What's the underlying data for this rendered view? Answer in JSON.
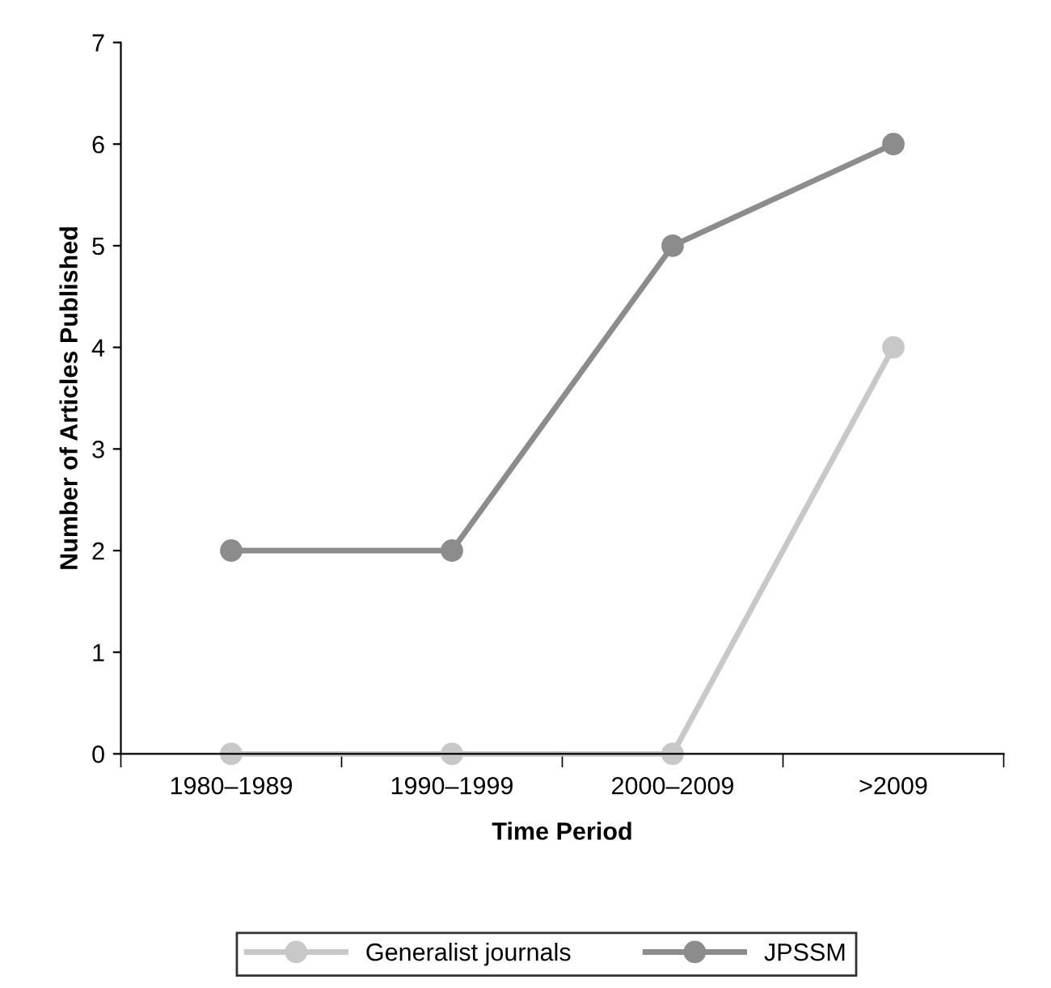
{
  "chart_data": {
    "type": "line",
    "xlabel": "Time Period",
    "ylabel": "Number of Articles Published",
    "categories": [
      "1980–1989",
      "1990–1999",
      "2000–2009",
      ">2009"
    ],
    "series": [
      {
        "name": "Generalist journals",
        "color": "#c8c8c8",
        "values": [
          0,
          0,
          0,
          4
        ]
      },
      {
        "name": "JPSSM",
        "color": "#8c8c8c",
        "values": [
          2,
          2,
          5,
          6
        ]
      }
    ],
    "ylim": [
      0,
      7
    ],
    "yticks": [
      0,
      1,
      2,
      3,
      4,
      5,
      6,
      7
    ],
    "grid": false,
    "legend": "bottom",
    "marker": "circle",
    "line_style": "solid"
  }
}
